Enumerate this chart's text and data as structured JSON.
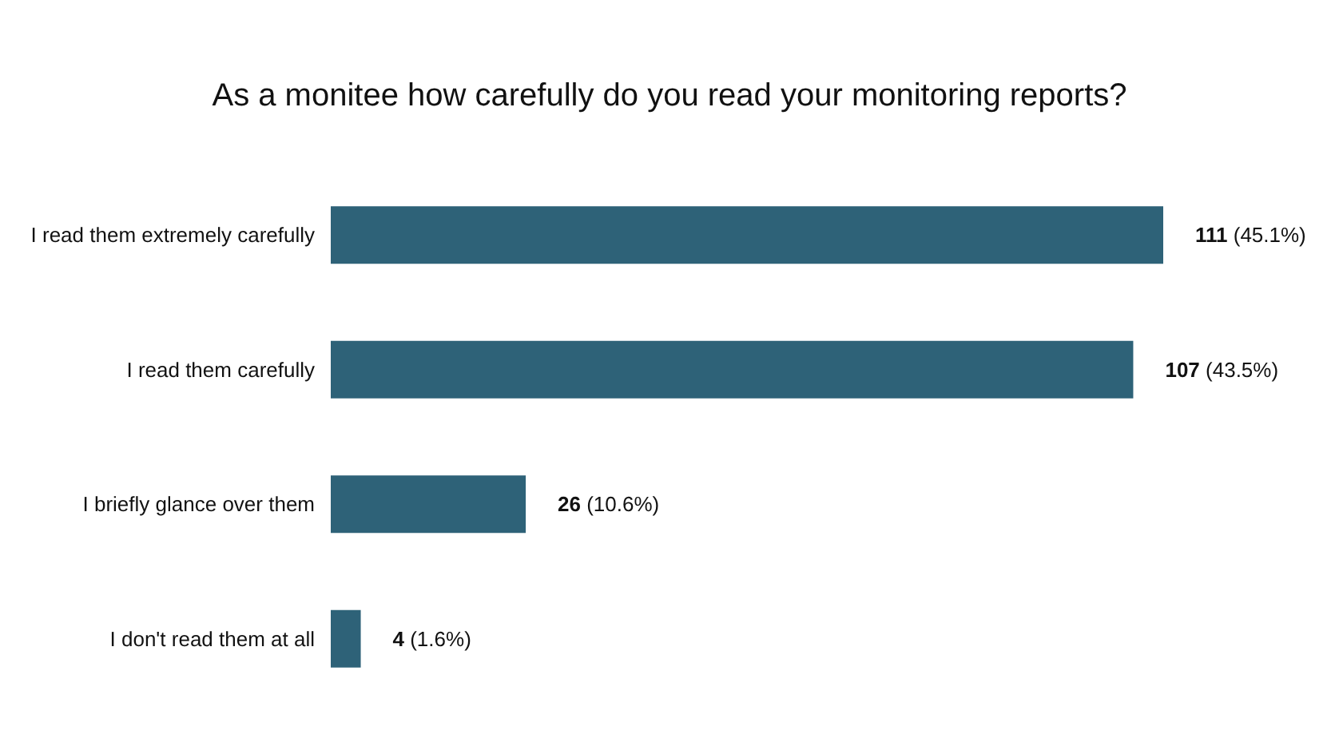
{
  "chart_data": {
    "type": "bar",
    "orientation": "horizontal",
    "title": "As a monitee how carefully do you read your monitoring reports?",
    "categories": [
      "I read them extremely carefully",
      "I read them carefully",
      "I briefly glance over them",
      "I don't read them at all"
    ],
    "values": [
      111,
      107,
      26,
      4
    ],
    "value_labels": [
      "111 (45.1%)",
      "107 (43.5%)",
      "26 (10.6%)",
      "4 (1.6%)"
    ],
    "color": "#2e6278",
    "grid": false
  }
}
